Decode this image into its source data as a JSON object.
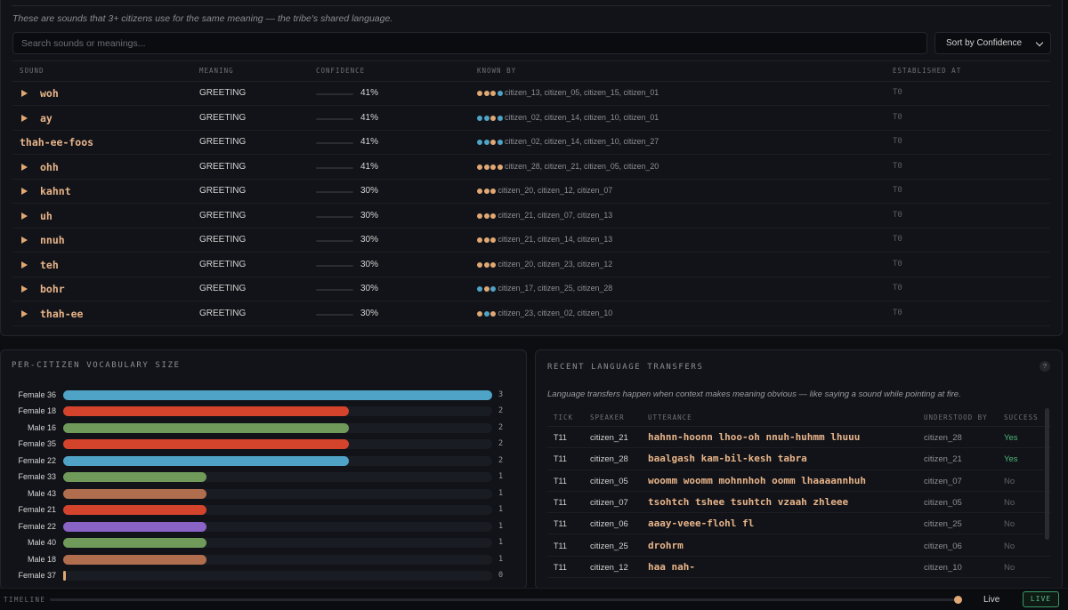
{
  "lexicon": {
    "description": "These are sounds that 3+ citizens use for the same meaning — the tribe's shared language.",
    "search_placeholder": "Search sounds or meanings...",
    "sort_label": "Sort by Confidence",
    "columns": [
      "SOUND",
      "MEANING",
      "CONFIDENCE",
      "KNOWN BY",
      "ESTABLISHED AT"
    ],
    "rows": [
      {
        "sound": "woh",
        "has_play": true,
        "meaning": "GREETING",
        "confidence": "41%",
        "confidence_value": 0.41,
        "dots": [
          "#e0a874",
          "#e0a874",
          "#e0a874",
          "#4fa3c7"
        ],
        "known_by": "citizen_13, citizen_05, citizen_15, citizen_01",
        "established": "T0"
      },
      {
        "sound": "ay",
        "has_play": true,
        "meaning": "GREETING",
        "confidence": "41%",
        "confidence_value": 0.41,
        "dots": [
          "#4fa3c7",
          "#4fa3c7",
          "#e0a874",
          "#4fa3c7"
        ],
        "known_by": "citizen_02, citizen_14, citizen_10, citizen_01",
        "established": "T0"
      },
      {
        "sound": "thah-ee-foos",
        "has_play": false,
        "meaning": "GREETING",
        "confidence": "41%",
        "confidence_value": 0.41,
        "dots": [
          "#4fa3c7",
          "#4fa3c7",
          "#e0a874",
          "#4fa3c7"
        ],
        "known_by": "citizen_02, citizen_14, citizen_10, citizen_27",
        "established": "T0"
      },
      {
        "sound": "ohh",
        "has_play": true,
        "meaning": "GREETING",
        "confidence": "41%",
        "confidence_value": 0.41,
        "dots": [
          "#e0a874",
          "#e0a874",
          "#e0a874",
          "#e0a874"
        ],
        "known_by": "citizen_28, citizen_21, citizen_05, citizen_20",
        "established": "T0"
      },
      {
        "sound": "kahnt",
        "has_play": true,
        "meaning": "GREETING",
        "confidence": "30%",
        "confidence_value": 0.3,
        "dots": [
          "#e0a874",
          "#e0a874",
          "#e0a874"
        ],
        "known_by": "citizen_20, citizen_12, citizen_07",
        "established": "T0"
      },
      {
        "sound": "uh",
        "has_play": true,
        "meaning": "GREETING",
        "confidence": "30%",
        "confidence_value": 0.3,
        "dots": [
          "#e0a874",
          "#e0a874",
          "#e0a874"
        ],
        "known_by": "citizen_21, citizen_07, citizen_13",
        "established": "T0"
      },
      {
        "sound": "nnuh",
        "has_play": true,
        "meaning": "GREETING",
        "confidence": "30%",
        "confidence_value": 0.3,
        "dots": [
          "#e0a874",
          "#e0a874",
          "#e0a874"
        ],
        "known_by": "citizen_21, citizen_14, citizen_13",
        "established": "T0"
      },
      {
        "sound": "teh",
        "has_play": true,
        "meaning": "GREETING",
        "confidence": "30%",
        "confidence_value": 0.3,
        "dots": [
          "#e0a874",
          "#e0a874",
          "#e0a874"
        ],
        "known_by": "citizen_20, citizen_23, citizen_12",
        "established": "T0"
      },
      {
        "sound": "bohr",
        "has_play": true,
        "meaning": "GREETING",
        "confidence": "30%",
        "confidence_value": 0.3,
        "dots": [
          "#4fa3c7",
          "#e0a874",
          "#4fa3c7"
        ],
        "known_by": "citizen_17, citizen_25, citizen_28",
        "established": "T0"
      },
      {
        "sound": "thah-ee",
        "has_play": true,
        "meaning": "GREETING",
        "confidence": "30%",
        "confidence_value": 0.3,
        "dots": [
          "#e0a874",
          "#4fa3c7",
          "#e0a874"
        ],
        "known_by": "citizen_23, citizen_02, citizen_10",
        "established": "T0"
      }
    ]
  },
  "vocab": {
    "title": "PER-CITIZEN VOCABULARY SIZE",
    "max": 3,
    "items": [
      {
        "label": "Female 36",
        "value": 3,
        "color": "#4fa3c7"
      },
      {
        "label": "Female 18",
        "value": 2,
        "color": "#d4432c"
      },
      {
        "label": "Male 16",
        "value": 2,
        "color": "#6f9a5a"
      },
      {
        "label": "Female 35",
        "value": 2,
        "color": "#d4432c"
      },
      {
        "label": "Female 22",
        "value": 2,
        "color": "#4fa3c7"
      },
      {
        "label": "Female 33",
        "value": 1,
        "color": "#6f9a5a"
      },
      {
        "label": "Male 43",
        "value": 1,
        "color": "#b06e4e"
      },
      {
        "label": "Female 21",
        "value": 1,
        "color": "#d4432c"
      },
      {
        "label": "Female 22",
        "value": 1,
        "color": "#8a63c7"
      },
      {
        "label": "Male 40",
        "value": 1,
        "color": "#6f9a5a"
      },
      {
        "label": "Male 18",
        "value": 1,
        "color": "#b06e4e"
      },
      {
        "label": "Female 37",
        "value": 0,
        "color": "#e0a874"
      }
    ]
  },
  "transfers": {
    "title": "RECENT LANGUAGE TRANSFERS",
    "help": "?",
    "description": "Language transfers happen when context makes meaning obvious — like saying a sound while pointing at fire.",
    "columns": [
      "TICK",
      "SPEAKER",
      "UTTERANCE",
      "UNDERSTOOD BY",
      "SUCCESS"
    ],
    "rows": [
      {
        "tick": "T11",
        "speaker": "citizen_21",
        "utterance": "hahnn-hoonn lhoo-oh nnuh-huhmm lhuuu",
        "understood_by": "citizen_28",
        "success": "Yes"
      },
      {
        "tick": "T11",
        "speaker": "citizen_28",
        "utterance": "baalgash kam-bil-kesh tabra",
        "understood_by": "citizen_21",
        "success": "Yes"
      },
      {
        "tick": "T11",
        "speaker": "citizen_05",
        "utterance": "woomm woomm mohnnhoh oomm lhaaaannhuh",
        "understood_by": "citizen_07",
        "success": "No"
      },
      {
        "tick": "T11",
        "speaker": "citizen_07",
        "utterance": "tsohtch tshee tsuhtch vzaah zhleee",
        "understood_by": "citizen_05",
        "success": "No"
      },
      {
        "tick": "T11",
        "speaker": "citizen_06",
        "utterance": "aaay-veee-flohl fl",
        "understood_by": "citizen_25",
        "success": "No"
      },
      {
        "tick": "T11",
        "speaker": "citizen_25",
        "utterance": "drohrm",
        "understood_by": "citizen_06",
        "success": "No"
      },
      {
        "tick": "T11",
        "speaker": "citizen_12",
        "utterance": "haa nah-",
        "understood_by": "citizen_10",
        "success": "No"
      }
    ]
  },
  "timeline": {
    "label": "TIMELINE",
    "live_text": "Live",
    "live_button": "LIVE",
    "position": 1.0
  },
  "colors": {
    "yes": "#4cb87a",
    "no": "#5f6168",
    "accent": "#e0a874"
  }
}
